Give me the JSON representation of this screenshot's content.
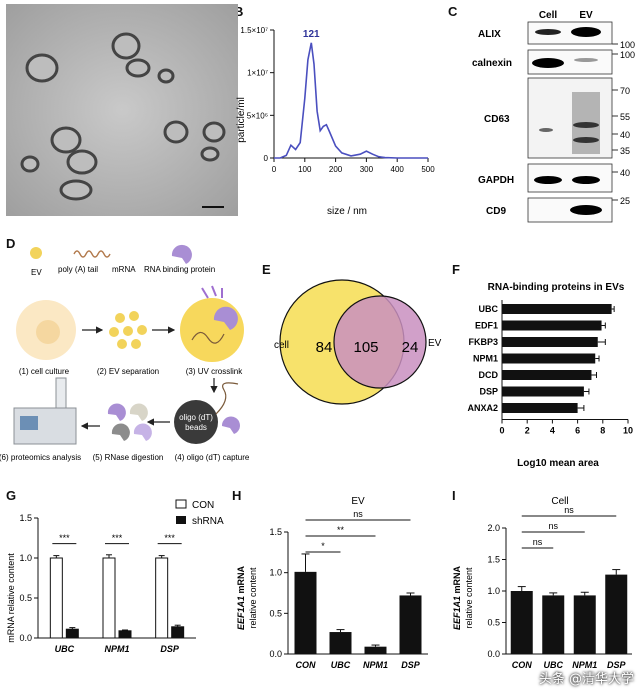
{
  "panel_letters": {
    "A": "A",
    "B": "B",
    "C": "C",
    "D": "D",
    "E": "E",
    "F": "F",
    "G": "G",
    "H": "H",
    "I": "I"
  },
  "watermark": "头条 @清华大学",
  "colors": {
    "nta_line": "#4a4fbf",
    "venn_cell": "#f7e26b",
    "venn_ev": "#c98fc0",
    "bar_black": "#111111",
    "con_bar": "#ffffff"
  },
  "panel_c": {
    "lanes": [
      "Cell",
      "EV"
    ],
    "blots": [
      {
        "name": "ALIX",
        "markers": [
          "100"
        ]
      },
      {
        "name": "calnexin",
        "markers": [
          "100"
        ]
      },
      {
        "name": "CD63",
        "markers": [
          "70",
          "55",
          "40",
          "35"
        ]
      },
      {
        "name": "GAPDH",
        "markers": [
          "40"
        ]
      },
      {
        "name": "CD9",
        "markers": [
          "25"
        ]
      }
    ]
  },
  "panel_d": {
    "legend": {
      "ev": "EV",
      "polya": "poly (A) tail",
      "mrna": "mRNA",
      "rbp": "RNA binding protein"
    },
    "steps": [
      "(1) cell culture",
      "(2) EV separation",
      "(3) UV crosslink",
      "(4) oligo (dT) capture",
      "(5) RNase digestion",
      "(6) proteomics analysis"
    ],
    "beads_label": [
      "oligo (dT)",
      "beads"
    ]
  },
  "panel_e": {
    "cell_label": "cell",
    "ev_label": "EV",
    "cell_only": "84",
    "overlap": "105",
    "ev_only": "24"
  },
  "chart_data": [
    {
      "panel": "B",
      "type": "line",
      "xlabel": "size / nm",
      "ylabel": "particle/ml",
      "xlim": [
        0,
        500
      ],
      "ylim": [
        0,
        15000000
      ],
      "xticks": [
        "0",
        "100",
        "200",
        "300",
        "400",
        "500"
      ],
      "yticks": [
        "0",
        "5×10⁶",
        "1×10⁷",
        "1.5×10⁷"
      ],
      "peak_label": "121",
      "x": [
        0,
        20,
        40,
        55,
        70,
        85,
        100,
        110,
        121,
        130,
        140,
        150,
        160,
        170,
        180,
        200,
        220,
        250,
        280,
        300,
        320,
        340,
        360,
        400,
        450,
        500
      ],
      "y": [
        0,
        0,
        300000,
        1500000,
        1000000,
        1800000,
        7000000,
        11500000,
        13500000,
        11000000,
        5500000,
        3200000,
        3700000,
        3900000,
        3100000,
        1400000,
        600000,
        250000,
        450000,
        800000,
        450000,
        150000,
        50000,
        0,
        0,
        0
      ]
    },
    {
      "panel": "F",
      "type": "bar",
      "orientation": "horizontal",
      "title": "RNA-binding proteins in EVs",
      "xlabel": "Log10 mean area",
      "xlim": [
        0,
        10
      ],
      "xticks": [
        "0",
        "2",
        "4",
        "6",
        "8",
        "10"
      ],
      "categories": [
        "UBC",
        "EDF1",
        "FKBP3",
        "NPM1",
        "DCD",
        "DSP",
        "ANXA2"
      ],
      "values": [
        8.7,
        7.9,
        7.6,
        7.4,
        7.1,
        6.5,
        6.0
      ],
      "errors": [
        0.2,
        0.3,
        0.6,
        0.3,
        0.4,
        0.4,
        0.5
      ]
    },
    {
      "panel": "G",
      "type": "bar",
      "ylabel": "mRNA relative content",
      "ylim": [
        0,
        1.5
      ],
      "yticks": [
        "0.0",
        "0.5",
        "1.0",
        "1.5"
      ],
      "categories": [
        "UBC",
        "NPM1",
        "DSP"
      ],
      "series": [
        {
          "name": "CON",
          "values": [
            1.0,
            1.0,
            1.0
          ],
          "errors": [
            0.03,
            0.04,
            0.03
          ]
        },
        {
          "name": "shRNA",
          "values": [
            0.11,
            0.09,
            0.14
          ],
          "errors": [
            0.02,
            0.01,
            0.02
          ]
        }
      ],
      "significance": [
        "***",
        "***",
        "***"
      ]
    },
    {
      "panel": "H",
      "type": "bar",
      "title": "EV",
      "ylabel": [
        "EEF1A1",
        " mRNA",
        "relative content"
      ],
      "ylim": [
        0,
        1.5
      ],
      "yticks": [
        "0.0",
        "0.5",
        "1.0",
        "1.5"
      ],
      "categories": [
        "CON",
        "UBC",
        "NPM1",
        "DSP"
      ],
      "values": [
        1.01,
        0.27,
        0.09,
        0.72
      ],
      "errors": [
        0.22,
        0.03,
        0.02,
        0.03
      ],
      "comparisons": [
        {
          "label": "ns",
          "to": "DSP"
        },
        {
          "label": "**",
          "to": "NPM1"
        },
        {
          "label": "*",
          "to": "UBC"
        }
      ]
    },
    {
      "panel": "I",
      "type": "bar",
      "title": "Cell",
      "ylabel": [
        "EEF1A1",
        " mRNA",
        "relative content"
      ],
      "ylim": [
        0,
        2.0
      ],
      "yticks": [
        "0.0",
        "0.5",
        "1.0",
        "1.5",
        "2.0"
      ],
      "categories": [
        "CON",
        "UBC",
        "NPM1",
        "DSP"
      ],
      "values": [
        1.0,
        0.93,
        0.93,
        1.26
      ],
      "errors": [
        0.07,
        0.04,
        0.05,
        0.08
      ],
      "comparisons": [
        {
          "label": "ns",
          "to": "DSP"
        },
        {
          "label": "ns",
          "to": "NPM1"
        },
        {
          "label": "ns",
          "to": "UBC"
        }
      ]
    }
  ]
}
